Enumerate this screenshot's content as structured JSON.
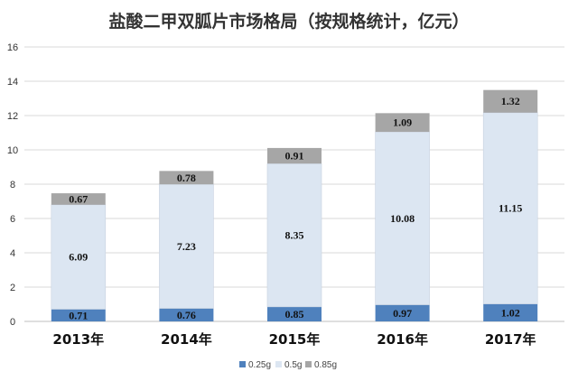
{
  "chart_data": {
    "type": "bar",
    "stacked": true,
    "title": "盐酸二甲双胍片市场格局（按规格统计，亿元）",
    "categories": [
      "2013年",
      "2014年",
      "2015年",
      "2016年",
      "2017年"
    ],
    "series": [
      {
        "name": "0.25g",
        "values": [
          0.71,
          0.76,
          0.85,
          0.97,
          1.02
        ],
        "labels": [
          "0.71",
          "0.76",
          "0.85",
          "0.97",
          "1.02"
        ],
        "color": "#4f81bd"
      },
      {
        "name": "0.5g",
        "values": [
          6.09,
          7.23,
          8.35,
          10.08,
          11.15
        ],
        "labels": [
          "6.09",
          "7.23",
          "8.35",
          "10.08",
          "11.15"
        ],
        "color": "#dce6f2"
      },
      {
        "name": "0.85g",
        "values": [
          0.67,
          0.78,
          0.91,
          1.09,
          1.32
        ],
        "labels": [
          "0.67",
          "0.78",
          "0.91",
          "1.09",
          "1.32"
        ],
        "color": "#a6a6a6"
      }
    ],
    "yticks": [
      "0",
      "2",
      "4",
      "6",
      "8",
      "10",
      "12",
      "14",
      "16"
    ],
    "ylim": [
      0,
      16
    ],
    "grid": true,
    "legend_position": "bottom"
  }
}
